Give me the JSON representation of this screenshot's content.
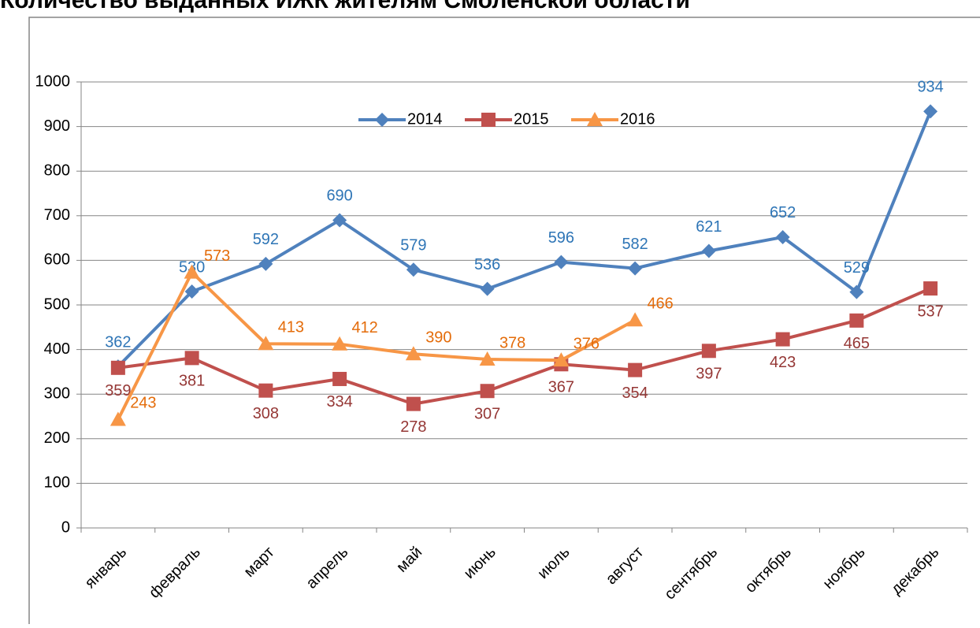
{
  "chart_data": {
    "type": "line",
    "title": "Количество выданных ИЖК жителям Смоленской области",
    "categories": [
      "январь",
      "февраль",
      "март",
      "апрель",
      "май",
      "июнь",
      "июль",
      "август",
      "сентябрь",
      "октябрь",
      "ноябрь",
      "декабрь"
    ],
    "series": [
      {
        "name": "2014",
        "color": "#4f81bd",
        "label_color": "#2e75b6",
        "marker": "diamond",
        "values": [
          362,
          530,
          592,
          690,
          579,
          536,
          596,
          582,
          621,
          652,
          529,
          934
        ]
      },
      {
        "name": "2015",
        "color": "#c0504d",
        "label_color": "#953735",
        "marker": "square",
        "values": [
          359,
          381,
          308,
          334,
          278,
          307,
          367,
          354,
          397,
          423,
          465,
          537
        ]
      },
      {
        "name": "2016",
        "color": "#f79646",
        "label_color": "#e46c0a",
        "marker": "triangle",
        "values": [
          243,
          573,
          413,
          412,
          390,
          378,
          376,
          466,
          null,
          null,
          null,
          null
        ]
      }
    ],
    "ylim": [
      0,
      1000
    ],
    "yticks": [
      0,
      100,
      200,
      300,
      400,
      500,
      600,
      700,
      800,
      900,
      1000
    ],
    "grid": true,
    "legend": "top"
  }
}
